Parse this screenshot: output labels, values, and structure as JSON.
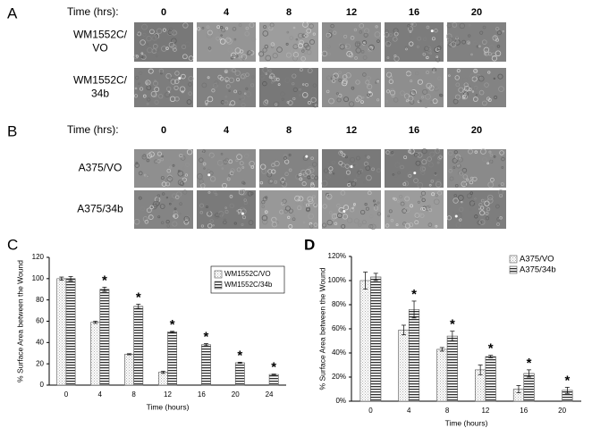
{
  "panels": [
    {
      "letter": "A",
      "header": "Time (hrs):",
      "times": [
        "0",
        "4",
        "8",
        "12",
        "16",
        "20"
      ],
      "rows": [
        [
          "WM1552C/",
          "VO"
        ],
        [
          "WM1552C/",
          "34b"
        ]
      ]
    },
    {
      "letter": "B",
      "header": "Time (hrs):",
      "times": [
        "0",
        "4",
        "8",
        "12",
        "16",
        "20"
      ],
      "rows": [
        [
          "A375/VO"
        ],
        [
          "A375/34b"
        ]
      ]
    }
  ],
  "chart_data": [
    {
      "type": "bar",
      "panel": "C",
      "xlabel": "Time (hours)",
      "ylabel": "% Surface Area between the Wound",
      "categories": [
        "0",
        "4",
        "8",
        "12",
        "16",
        "20",
        "24"
      ],
      "series": [
        {
          "name": "WM1552C/VO",
          "color": "#b0b0b0",
          "hatch": "dots",
          "values": [
            100,
            59,
            29,
            12,
            null,
            null,
            null
          ],
          "errors": [
            1.5,
            1,
            0.5,
            1,
            null,
            null,
            null
          ]
        },
        {
          "name": "WM1552C/34b",
          "color": "#303030",
          "hatch": "horizontal",
          "values": [
            100,
            90,
            74,
            50,
            38,
            21,
            10
          ],
          "errors": [
            2,
            2,
            2,
            0.5,
            1,
            0.5,
            0.3
          ]
        }
      ],
      "significance": [
        null,
        "*",
        "*",
        "*",
        "*",
        "*",
        "*"
      ],
      "ylim": [
        0,
        120
      ],
      "yticks": [
        0,
        20,
        40,
        60,
        80,
        100,
        120
      ],
      "grid": false,
      "legend": "upper right"
    },
    {
      "type": "bar",
      "panel": "D",
      "xlabel": "Time (hours)",
      "ylabel": "% Surface Area between the Wound",
      "categories": [
        "0",
        "4",
        "8",
        "12",
        "16",
        "20"
      ],
      "series": [
        {
          "name": "A375/VO",
          "color": "#b0b0b0",
          "hatch": "dots",
          "values": [
            100,
            59,
            43,
            26,
            10,
            null
          ],
          "errors": [
            7,
            4,
            1.5,
            4,
            3,
            null
          ]
        },
        {
          "name": "A375/34b",
          "color": "#303030",
          "hatch": "horizontal",
          "values": [
            103,
            76,
            54,
            37,
            23,
            9
          ],
          "errors": [
            3,
            7,
            4,
            1,
            3,
            2.5
          ]
        }
      ],
      "significance": [
        null,
        "*",
        "*",
        "*",
        "*",
        "*"
      ],
      "ylim": [
        0,
        120
      ],
      "yticks": [
        {
          "value": 0,
          "label": "0%"
        },
        {
          "value": 20,
          "label": "20%"
        },
        {
          "value": 40,
          "label": "40%"
        },
        {
          "value": 60,
          "label": "60%"
        },
        {
          "value": 80,
          "label": "80%"
        },
        {
          "value": 100,
          "label": "100%"
        },
        {
          "value": 120,
          "label": "120%"
        }
      ],
      "grid": false,
      "legend": "upper right"
    }
  ]
}
